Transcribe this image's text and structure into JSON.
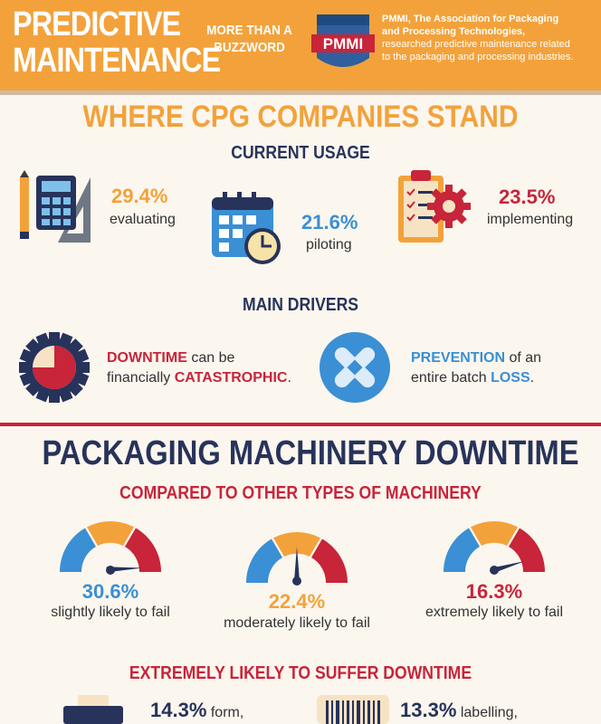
{
  "header": {
    "title_line1": "PREDICTIVE",
    "title_line2": "MAINTENANCE",
    "tagline_line1": "MORE THAN A",
    "tagline_line2": "BUZZWORD",
    "logo_text": "PMMI",
    "org_name_line1": "PMMI, The Association for Packaging",
    "org_name_line2": "and Processing Technologies,",
    "description_line1": "researched predictive maintenance related",
    "description_line2": "to the packaging and processing industries."
  },
  "section1": {
    "title": "WHERE CPG COMPANIES STAND",
    "current_usage": {
      "heading": "CURRENT USAGE",
      "stats": [
        {
          "pct": "29.4%",
          "label": "evaluating",
          "icon": "calculator-ruler-icon"
        },
        {
          "pct": "21.6%",
          "label": "piloting",
          "icon": "calendar-clock-icon"
        },
        {
          "pct": "23.5%",
          "label": "implementing",
          "icon": "clipboard-gear-icon"
        }
      ]
    },
    "main_drivers": {
      "heading": "MAIN DRIVERS",
      "drivers": [
        {
          "hl1": "DOWNTIME",
          "t1": " can be",
          "t2": "financially ",
          "hl2": "CATASTROPHIC",
          "t3": ".",
          "icon": "gear-pie-icon"
        },
        {
          "hl1": "PREVENTION",
          "t1": " of an",
          "t2": "entire batch ",
          "hl2": "LOSS",
          "t3": ".",
          "icon": "bandage-icon"
        }
      ]
    }
  },
  "section2": {
    "title": "PACKAGING MACHINERY DOWNTIME",
    "compared": {
      "heading": "COMPARED TO OTHER TYPES OF MACHINERY",
      "gauges": [
        {
          "pct": "30.6%",
          "label": "slightly likely to fail",
          "level": "slightly"
        },
        {
          "pct": "22.4%",
          "label": "moderately likely to fail",
          "level": "moderately"
        },
        {
          "pct": "16.3%",
          "label": "extremely likely to fail",
          "level": "extremely"
        }
      ]
    },
    "extremely": {
      "heading": "EXTREMELY LIKELY TO SUFFER DOWNTIME",
      "items": [
        {
          "pct": "14.3%",
          "label": "form,",
          "icon": "machine-icon"
        },
        {
          "pct": "13.3%",
          "label": "labelling,",
          "icon": "barcode-icon"
        }
      ]
    }
  },
  "colors": {
    "orange": "#f3a23b",
    "navy": "#27335a",
    "red": "#c8243a",
    "blue": "#3b8fd4",
    "background": "#fbf6ee"
  }
}
